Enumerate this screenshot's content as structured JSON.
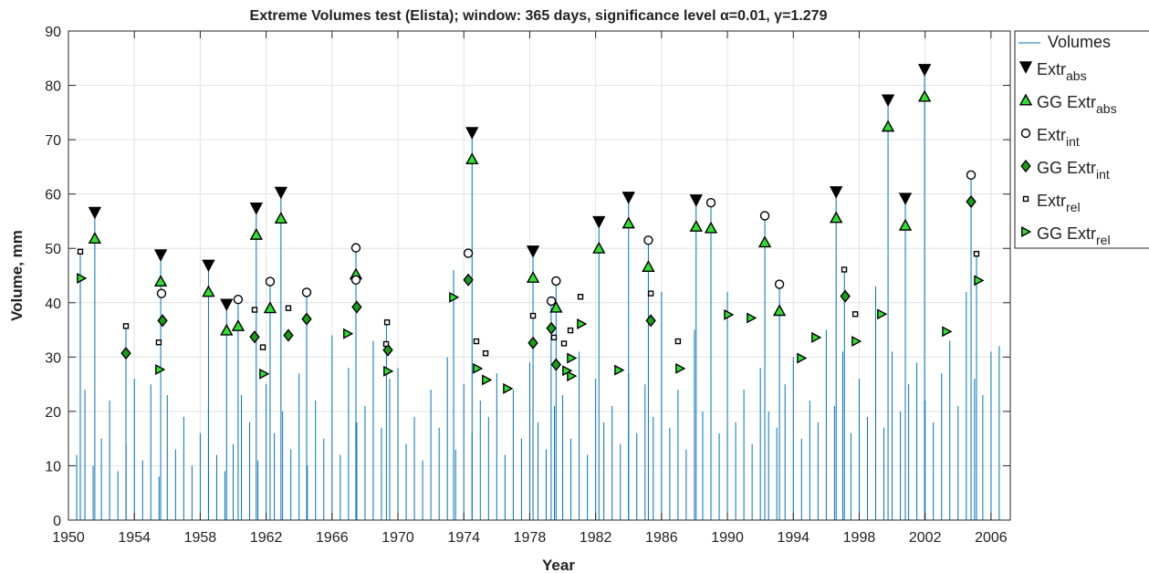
{
  "chart_data": {
    "type": "stem",
    "title": "Extreme Volumes test (Elista); window: 365 days, significance level α=0.01, γ=1.279",
    "x_label": "Year",
    "y_label": "Volume, mm",
    "xlim": [
      1950,
      2007.17
    ],
    "xticks": [
      1950,
      1954,
      1958,
      1962,
      1966,
      1970,
      1974,
      1978,
      1982,
      1986,
      1990,
      1994,
      1998,
      2002,
      2006
    ],
    "ylim": [
      0,
      90
    ],
    "yticks": [
      0,
      10,
      20,
      30,
      40,
      50,
      60,
      70,
      80,
      90
    ],
    "grid": true,
    "legend": "outside-right",
    "series": [
      {
        "name": "Volumes",
        "kind": "stem",
        "color": "#0072bd",
        "x": [
          1950,
          1950.5,
          1951,
          1951.5,
          1952,
          1952.5,
          1953,
          1953.5,
          1954,
          1954.5,
          1955,
          1955.5,
          1956,
          1956.5,
          1957,
          1957.5,
          1958,
          1958.5,
          1959,
          1959.5,
          1960,
          1960.5,
          1961,
          1961.5,
          1962,
          1962.5,
          1963,
          1963.5,
          1964,
          1964.5,
          1965,
          1965.5,
          1966,
          1966.5,
          1967,
          1967.5,
          1968,
          1968.5,
          1969,
          1969.5,
          1970,
          1970.5,
          1971,
          1971.5,
          1972,
          1972.5,
          1973,
          1973.5,
          1974,
          1974.5,
          1975,
          1975.5,
          1976,
          1976.5,
          1977,
          1977.5,
          1978,
          1978.5,
          1979,
          1979.5,
          1980,
          1980.5,
          1981,
          1981.5,
          1982,
          1982.5,
          1983,
          1983.5,
          1984,
          1984.5,
          1985,
          1985.5,
          1986,
          1986.5,
          1987,
          1987.5,
          1988,
          1988.5,
          1989,
          1989.5,
          1990,
          1990.5,
          1991,
          1991.5,
          1992,
          1992.5,
          1993,
          1993.5,
          1994,
          1994.5,
          1995,
          1995.5,
          1996,
          1996.5,
          1997,
          1997.5,
          1998,
          1998.5,
          1999,
          1999.5,
          2000,
          2000.5,
          2001,
          2001.5,
          2002,
          2002.5,
          2003,
          2003.5,
          2004,
          2004.5,
          2005,
          2005.5,
          2006,
          2006.5,
          1950.72,
          1951.6,
          1953.49,
          1955.6,
          1958.5,
          1959.6,
          1960.3,
          1961.4,
          1962.24,
          1962.9,
          1964.46,
          1967.45,
          1969.3,
          1973.38,
          1974.5,
          1978.2,
          1979.3,
          1979.6,
          1982.2,
          1984.0,
          1985.2,
          1988.1,
          1989.0,
          1992.27,
          1993.16,
          1996.6,
          1997.1,
          1999.75,
          2000.8,
          2001.97,
          2004.79,
          2005.12
        ],
        "values": [
          18,
          12,
          24,
          10,
          15,
          22,
          9,
          14,
          26,
          11,
          25,
          8,
          23,
          13,
          19,
          10,
          16,
          21,
          12,
          9,
          14,
          23,
          18,
          11,
          25,
          16,
          20,
          13,
          27,
          10,
          22,
          15,
          34,
          12,
          28,
          18,
          21,
          33,
          17,
          26,
          28,
          14,
          19,
          11,
          24,
          17,
          30,
          13,
          25,
          16,
          22,
          19,
          27,
          12,
          24,
          15,
          29,
          18,
          13,
          21,
          23,
          15,
          31,
          12,
          26,
          18,
          21,
          14,
          27,
          16,
          25,
          19,
          42,
          17,
          24,
          13,
          35,
          20,
          26,
          16,
          42,
          18,
          24,
          14,
          28,
          20,
          17,
          25,
          30,
          15,
          22,
          18,
          35,
          21,
          31,
          16,
          26,
          19,
          43,
          17,
          31,
          20,
          25,
          29,
          22,
          18,
          27,
          33,
          21,
          42,
          26,
          23,
          31,
          32,
          49.4,
          56.5,
          35.7,
          48.7,
          46.8,
          39.6,
          40.6,
          57.3,
          43.9,
          60.2,
          41.9,
          50.1,
          36.4,
          46,
          71.2,
          49.4,
          40.3,
          44,
          54.8,
          59.3,
          51.5,
          58.8,
          58.4,
          56,
          43.4,
          60.3,
          46.1,
          77.2,
          59.1,
          82.8,
          63.5,
          49
        ]
      },
      {
        "name": "Extr",
        "subscript": "abs",
        "kind": "marker",
        "marker": "triangle-down",
        "color": "#000000",
        "x": [
          1951.6,
          1955.6,
          1958.5,
          1959.6,
          1961.4,
          1962.9,
          1974.5,
          1978.2,
          1982.2,
          1984.0,
          1988.1,
          1996.6,
          1999.75,
          2000.8,
          2001.97
        ],
        "values": [
          56.5,
          48.7,
          46.8,
          39.6,
          57.3,
          60.2,
          71.2,
          49.4,
          54.8,
          59.3,
          58.8,
          60.3,
          77.2,
          59.1,
          82.8
        ]
      },
      {
        "name": "GG Extr",
        "subscript": "abs",
        "kind": "marker",
        "marker": "triangle-up",
        "color": "#33dd33",
        "x": [
          1951.6,
          1955.6,
          1958.5,
          1959.6,
          1960.3,
          1961.4,
          1962.24,
          1962.9,
          1967.45,
          1974.5,
          1978.2,
          1982.2,
          1984.0,
          1985.2,
          1979.6,
          1988.1,
          1989.0,
          1992.27,
          1993.16,
          1996.6,
          1999.75,
          2000.8,
          2001.97
        ],
        "values": [
          51.8,
          43.9,
          42,
          34.9,
          35.7,
          52.5,
          39,
          55.5,
          45.2,
          66.4,
          44.6,
          50,
          54.6,
          46.6,
          39.1,
          54,
          53.7,
          51.1,
          38.5,
          55.6,
          72.4,
          54.2,
          77.9
        ]
      },
      {
        "name": "Extr",
        "subscript": "int",
        "kind": "marker",
        "marker": "circle",
        "color": "#ffffff",
        "x": [
          1955.65,
          1960.3,
          1962.24,
          1964.46,
          1967.45,
          1967.45,
          1974.27,
          1979.31,
          1979.6,
          1985.2,
          1989.0,
          1992.27,
          1993.16,
          2004.79
        ],
        "values": [
          41.7,
          40.6,
          43.9,
          41.9,
          50.1,
          44.2,
          49.1,
          40.3,
          44,
          51.5,
          58.4,
          56,
          43.4,
          63.5
        ]
      },
      {
        "name": "GG Extr",
        "subscript": "int",
        "kind": "marker",
        "marker": "diamond",
        "color": "#1a9e1a",
        "x": [
          1953.49,
          1955.71,
          1961.3,
          1963.35,
          1964.46,
          1967.5,
          1969.39,
          1974.27,
          1978.2,
          1979.31,
          1979.6,
          1985.35,
          1997.15,
          2004.79
        ],
        "values": [
          30.7,
          36.7,
          33.7,
          34,
          37,
          39.2,
          31.3,
          44.2,
          32.6,
          35.3,
          28.6,
          36.7,
          41.2,
          58.6
        ]
      },
      {
        "name": "Extr",
        "subscript": "rel",
        "kind": "marker",
        "marker": "square",
        "color": "#ffffff",
        "x": [
          1950.72,
          1953.49,
          1955.48,
          1961.3,
          1961.8,
          1963.35,
          1969.34,
          1969.28,
          1978.2,
          1974.76,
          1975.32,
          1979.47,
          1980.08,
          1980.47,
          1981.08,
          1985.35,
          1987.0,
          1997.09,
          1997.76,
          2005.12
        ],
        "values": [
          49.4,
          35.7,
          32.7,
          38.7,
          31.8,
          39,
          36.4,
          32.4,
          37.6,
          32.9,
          30.7,
          33.6,
          32.5,
          34.9,
          41.1,
          41.7,
          32.9,
          46.1,
          37.9,
          49
        ]
      },
      {
        "name": "GG Extr",
        "subscript": "rel",
        "kind": "marker",
        "marker": "triangle-right",
        "color": "#33dd33",
        "x": [
          1950.78,
          1955.54,
          1961.86,
          1966.95,
          1969.39,
          1973.38,
          1974.82,
          1975.37,
          1976.65,
          1980.53,
          1980.53,
          1980.25,
          1981.14,
          1983.41,
          1987.12,
          1990.06,
          1991.44,
          1994.49,
          1995.37,
          1997.81,
          1999.36,
          2003.3,
          2005.24
        ],
        "values": [
          44.5,
          27.7,
          26.9,
          34.3,
          27.4,
          41,
          27.9,
          25.8,
          24.2,
          26.5,
          29.8,
          27.5,
          36.1,
          27.6,
          27.9,
          37.8,
          37.2,
          29.8,
          33.6,
          32.9,
          37.9,
          34.7,
          44.1
        ]
      }
    ]
  }
}
